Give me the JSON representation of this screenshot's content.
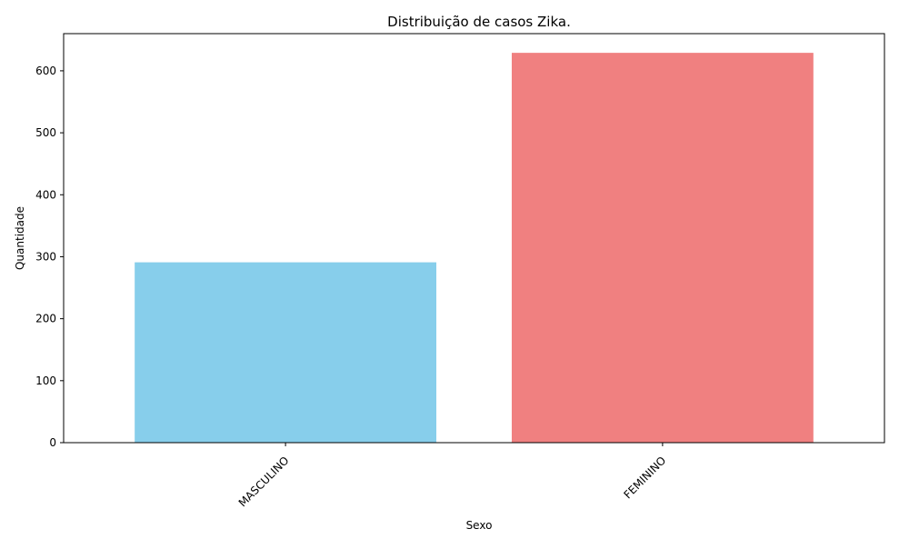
{
  "chart_data": {
    "type": "bar",
    "title": "Distribuição de casos Zika.",
    "xlabel": "Sexo",
    "ylabel": "Quantidade",
    "categories": [
      "MASCULINO",
      "FEMININO"
    ],
    "values": [
      291,
      629
    ],
    "colors": [
      "#87ceeb",
      "#f08080"
    ],
    "ylim": [
      0,
      660
    ],
    "yticks": [
      0,
      100,
      200,
      300,
      400,
      500,
      600
    ],
    "x_tick_rotation_deg": 45,
    "grid": false,
    "legend": "none"
  }
}
